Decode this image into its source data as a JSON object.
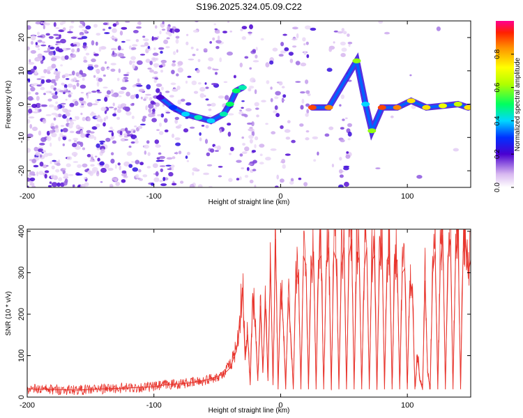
{
  "title": "S196.2025.324.05.09.C22",
  "chart_data": [
    {
      "type": "heatmap",
      "xlabel": "Height of straight line (km)",
      "ylabel": "Frequency (Hz)",
      "xlim": [
        -200,
        150
      ],
      "ylim": [
        -25,
        25
      ],
      "x_ticks": [
        -200,
        -100,
        0,
        100
      ],
      "x_tick_labels": [
        "-200",
        "-100",
        "0",
        "100"
      ],
      "y_ticks": [
        -20,
        -10,
        0,
        10,
        20
      ],
      "y_tick_labels": [
        "-20",
        "-10",
        "0",
        "10",
        "20"
      ],
      "colorbar": {
        "label": "Normalized spectral amplitude",
        "range": [
          0,
          1
        ],
        "ticks": [
          0,
          0.2,
          0.4,
          0.6,
          0.8
        ],
        "tick_labels": [
          "0.0",
          "0.2",
          "0.4",
          "0.6",
          "0.8"
        ]
      },
      "track": [
        {
          "x": -95,
          "f": 2,
          "a": 0.2
        },
        {
          "x": -85,
          "f": -1,
          "a": 0.3
        },
        {
          "x": -75,
          "f": -3,
          "a": 0.4
        },
        {
          "x": -65,
          "f": -4,
          "a": 0.45
        },
        {
          "x": -55,
          "f": -5,
          "a": 0.4
        },
        {
          "x": -45,
          "f": -3,
          "a": 0.45
        },
        {
          "x": -40,
          "f": 0,
          "a": 0.5
        },
        {
          "x": -35,
          "f": 4,
          "a": 0.5
        },
        {
          "x": -30,
          "f": 5,
          "a": 0.45
        },
        {
          "x": 25,
          "f": -1,
          "a": 0.9
        },
        {
          "x": 38,
          "f": -1,
          "a": 0.85
        },
        {
          "x": 60,
          "f": 13,
          "a": 0.6
        },
        {
          "x": 67,
          "f": 0,
          "a": 0.4
        },
        {
          "x": 72,
          "f": -8,
          "a": 0.6
        },
        {
          "x": 80,
          "f": -1,
          "a": 0.9
        },
        {
          "x": 92,
          "f": -1,
          "a": 0.85
        },
        {
          "x": 103,
          "f": 1,
          "a": 0.75
        },
        {
          "x": 115,
          "f": -1,
          "a": 0.75
        },
        {
          "x": 128,
          "f": -0.5,
          "a": 0.7
        },
        {
          "x": 140,
          "f": 0,
          "a": 0.65
        },
        {
          "x": 148,
          "f": -1,
          "a": 0.75
        }
      ]
    },
    {
      "type": "line",
      "xlabel": "Height of straight line (km)",
      "ylabel": "SNR (10 * v/v)",
      "xlim": [
        -200,
        150
      ],
      "ylim": [
        0,
        405
      ],
      "x_ticks": [
        -200,
        -100,
        0,
        100
      ],
      "x_tick_labels": [
        "-200",
        "-100",
        "0",
        "100"
      ],
      "y_ticks": [
        0,
        100,
        200,
        300,
        400
      ],
      "y_tick_labels": [
        "0",
        "100",
        "200",
        "300",
        "400"
      ],
      "series": [
        {
          "name": "SNR",
          "color": "#e8342c",
          "x": [
            -200,
            -180,
            -160,
            -140,
            -120,
            -100,
            -90,
            -80,
            -70,
            -60,
            -50,
            -45,
            -40,
            -35,
            -32,
            -30,
            -28,
            -26,
            -24,
            -22,
            -20,
            -18,
            -16,
            -14,
            -12,
            -10,
            -8,
            -6,
            -4,
            -2,
            0,
            2,
            4,
            6,
            8,
            10,
            12,
            14,
            16,
            18,
            20,
            22,
            24,
            26,
            28,
            30,
            32,
            34,
            36,
            38,
            40,
            42,
            44,
            46,
            48,
            50,
            52,
            54,
            56,
            58,
            60,
            62,
            64,
            66,
            68,
            70,
            72,
            74,
            76,
            78,
            80,
            82,
            84,
            86,
            88,
            90,
            92,
            94,
            96,
            98,
            100,
            102,
            104,
            106,
            108,
            110,
            112,
            114,
            116,
            118,
            120,
            122,
            124,
            126,
            128,
            130,
            132,
            134,
            136,
            138,
            140,
            142,
            144,
            146,
            148,
            150
          ],
          "values": [
            20,
            18,
            17,
            20,
            22,
            25,
            30,
            32,
            35,
            40,
            50,
            55,
            70,
            110,
            180,
            260,
            90,
            150,
            30,
            250,
            170,
            40,
            220,
            60,
            230,
            40,
            320,
            30,
            380,
            20,
            260,
            180,
            20,
            240,
            150,
            20,
            280,
            300,
            20,
            340,
            320,
            20,
            300,
            350,
            20,
            330,
            340,
            20,
            310,
            360,
            20,
            350,
            330,
            20,
            320,
            360,
            20,
            340,
            380,
            20,
            350,
            330,
            20,
            310,
            360,
            20,
            330,
            340,
            20,
            320,
            370,
            20,
            330,
            350,
            20,
            320,
            330,
            20,
            300,
            310,
            20,
            280,
            260,
            20,
            100,
            40,
            20,
            280,
            60,
            20,
            300,
            350,
            20,
            320,
            390,
            20,
            340,
            380,
            20,
            330,
            395,
            20,
            350,
            380,
            300,
            330
          ]
        }
      ]
    }
  ]
}
